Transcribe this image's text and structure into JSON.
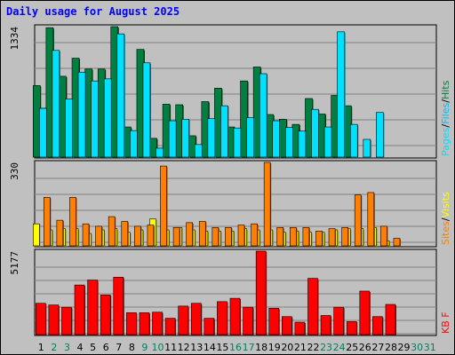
{
  "title": "Daily usage for August 2025",
  "colors": {
    "hits": "#008040",
    "files": "#00c0ff",
    "pages": "#00e0ff",
    "visits": "#ffff00",
    "sites": "#ff8000",
    "kbytes": "#ff0000",
    "weekday": "#000000",
    "weekend": "#00805c",
    "title": "#0000ff"
  },
  "chart_data": [
    {
      "type": "bar",
      "series": [
        {
          "name": "Hits",
          "color": "#008040",
          "values": [
            700,
            1260,
            790,
            965,
            860,
            860,
            1270,
            300,
            1050,
            190,
            520,
            515,
            215,
            545,
            675,
            300,
            745,
            880,
            420,
            375,
            325,
            575,
            425,
            605,
            505,
            0,
            0,
            0,
            0,
            0,
            0
          ]
        },
        {
          "name": "Files",
          "color": "#00c0ff",
          "values": [
            480,
            0,
            0,
            0,
            0,
            0,
            0,
            0,
            0,
            0,
            0,
            0,
            0,
            0,
            0,
            0,
            0,
            0,
            0,
            0,
            0,
            0,
            0,
            0,
            0,
            0,
            0,
            0,
            0,
            0,
            0
          ]
        },
        {
          "name": "Pages",
          "color": "#00e0ff",
          "values": [
            480,
            1040,
            570,
            830,
            745,
            765,
            1200,
            265,
            920,
            95,
            360,
            375,
            130,
            380,
            505,
            290,
            390,
            815,
            360,
            295,
            260,
            470,
            300,
            1220,
            325,
            180,
            440,
            0,
            0,
            0,
            0
          ]
        }
      ],
      "categories": [
        "1",
        "2",
        "3",
        "4",
        "5",
        "6",
        "7",
        "8",
        "9",
        "10",
        "11",
        "12",
        "13",
        "14",
        "15",
        "16",
        "17",
        "18",
        "19",
        "20",
        "21",
        "22",
        "23",
        "24",
        "25",
        "26",
        "27",
        "28",
        "29",
        "30",
        "31"
      ],
      "ymax_label": "1334",
      "side_labels": [
        "Hits",
        "Files",
        "Pages"
      ]
    },
    {
      "type": "bar",
      "series": [
        {
          "name": "Visits",
          "color": "#ffff00",
          "values": [
            95,
            70,
            75,
            75,
            55,
            70,
            75,
            60,
            70,
            115,
            70,
            80,
            70,
            65,
            65,
            65,
            75,
            70,
            70,
            60,
            65,
            60,
            60,
            70,
            75,
            75,
            80,
            25,
            0,
            0,
            0
          ]
        },
        {
          "name": "Sites",
          "color": "#ff8000",
          "values": [
            205,
            110,
            205,
            95,
            85,
            125,
            105,
            85,
            90,
            335,
            80,
            100,
            105,
            80,
            80,
            90,
            95,
            350,
            80,
            80,
            80,
            65,
            75,
            80,
            215,
            225,
            85,
            35,
            0,
            0,
            0
          ]
        }
      ],
      "ymax_label": "330",
      "side_labels": [
        "Visits",
        "Sites"
      ]
    },
    {
      "type": "bar",
      "series": [
        {
          "name": "KB F",
          "color": "#ff0000",
          "values": [
            2900,
            2750,
            2550,
            4550,
            5000,
            3650,
            5250,
            2050,
            2050,
            2100,
            1550,
            2650,
            2900,
            1550,
            3050,
            3350,
            2550,
            7600,
            2450,
            1700,
            1200,
            5150,
            1800,
            2550,
            1250,
            4000,
            1700,
            2800,
            0,
            0,
            0
          ]
        }
      ],
      "ymax_label": "5177",
      "side_labels": [
        "KB F"
      ]
    }
  ],
  "x_labels": [
    "1",
    "2",
    "3",
    "4",
    "5",
    "6",
    "7",
    "8",
    "9",
    "10",
    "11",
    "12",
    "13",
    "14",
    "15",
    "16",
    "17",
    "18",
    "19",
    "20",
    "21",
    "22",
    "23",
    "24",
    "25",
    "26",
    "27",
    "28",
    "29",
    "30",
    "31"
  ],
  "weekend_days": [
    "2",
    "3",
    "9",
    "10",
    "16",
    "17",
    "23",
    "24",
    "30",
    "31"
  ]
}
